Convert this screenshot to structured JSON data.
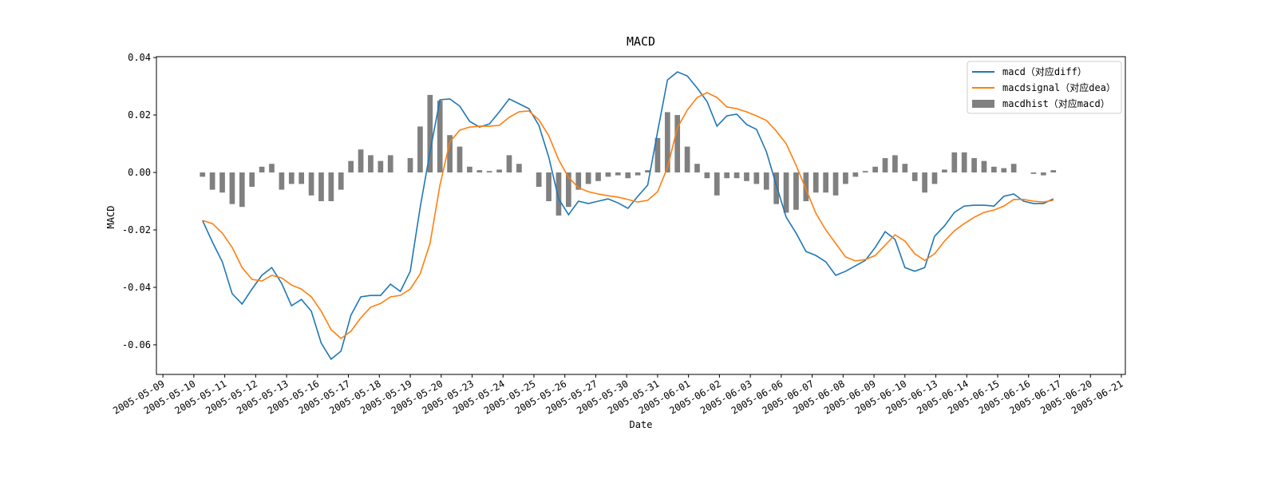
{
  "chart_data": {
    "type": "line",
    "title": "MACD",
    "xlabel": "Date",
    "ylabel": "MACD",
    "x": [
      1.28,
      1.6,
      1.92,
      2.24,
      2.56,
      2.88,
      3.2,
      3.52,
      3.84,
      4.16,
      4.48,
      4.8,
      5.12,
      5.44,
      5.76,
      6.08,
      6.4,
      6.72,
      7.04,
      7.36,
      7.68,
      8.0,
      8.32,
      8.64,
      8.96,
      9.28,
      9.6,
      9.92,
      10.24,
      10.56,
      10.88,
      11.2,
      11.52,
      11.84,
      12.16,
      12.48,
      12.8,
      13.12,
      13.44,
      13.76,
      14.08,
      14.4,
      14.72,
      15.04,
      15.36,
      15.68,
      16.0,
      16.32,
      16.64,
      16.96,
      17.28,
      17.6,
      17.92,
      18.24,
      18.56,
      18.88,
      19.2,
      19.52,
      19.84,
      20.16,
      20.48,
      20.8,
      21.12,
      21.44,
      21.76,
      22.08,
      22.4,
      22.72,
      23.04,
      23.36,
      23.68,
      24.0,
      24.32,
      24.64,
      24.96,
      25.28,
      25.6,
      25.92,
      26.24,
      26.56,
      26.88,
      27.2,
      27.52,
      27.84,
      28.16,
      28.48,
      28.8
    ],
    "series": [
      {
        "name": "macd（对应diff）",
        "type": "line",
        "color": "#1f77b4",
        "values": [
          -0.0167,
          -0.0242,
          -0.0311,
          -0.0422,
          -0.0458,
          -0.0406,
          -0.0358,
          -0.0331,
          -0.0386,
          -0.0464,
          -0.0442,
          -0.0483,
          -0.0594,
          -0.065,
          -0.0622,
          -0.0497,
          -0.0433,
          -0.0428,
          -0.0428,
          -0.0389,
          -0.0414,
          -0.0344,
          -0.0122,
          0.0072,
          0.0253,
          0.0256,
          0.0231,
          0.0178,
          0.0158,
          0.0169,
          0.0211,
          0.0256,
          0.0239,
          0.0222,
          0.0164,
          0.0053,
          -0.0092,
          -0.0147,
          -0.01,
          -0.0108,
          -0.01,
          -0.0092,
          -0.0106,
          -0.0125,
          -0.0083,
          -0.0044,
          0.0142,
          0.0322,
          0.035,
          0.0336,
          0.0294,
          0.0247,
          0.0161,
          0.0197,
          0.0203,
          0.0167,
          0.015,
          0.0072,
          -0.0044,
          -0.0156,
          -0.0211,
          -0.0275,
          -0.0289,
          -0.0311,
          -0.0358,
          -0.0344,
          -0.0325,
          -0.0306,
          -0.0261,
          -0.0206,
          -0.0233,
          -0.0331,
          -0.0344,
          -0.0331,
          -0.0222,
          -0.0186,
          -0.0139,
          -0.0117,
          -0.0114,
          -0.0114,
          -0.0117,
          -0.0083,
          -0.0075,
          -0.01,
          -0.0108,
          -0.0108,
          -0.0092
        ]
      },
      {
        "name": "macdsignal（对应dea）",
        "type": "line",
        "color": "#ff7f0e",
        "values": [
          -0.0167,
          -0.0178,
          -0.0211,
          -0.0261,
          -0.0331,
          -0.0372,
          -0.0378,
          -0.0358,
          -0.0367,
          -0.0392,
          -0.0406,
          -0.0433,
          -0.0483,
          -0.0547,
          -0.0578,
          -0.0553,
          -0.0506,
          -0.0469,
          -0.0456,
          -0.0433,
          -0.0428,
          -0.0406,
          -0.0353,
          -0.0247,
          -0.0044,
          0.0106,
          0.0147,
          0.0158,
          0.0161,
          0.0161,
          0.0164,
          0.0192,
          0.0211,
          0.0214,
          0.0183,
          0.0128,
          0.0044,
          -0.0017,
          -0.0053,
          -0.0067,
          -0.0075,
          -0.0081,
          -0.0086,
          -0.0094,
          -0.0103,
          -0.0097,
          -0.0067,
          0.0017,
          0.0156,
          0.0217,
          0.0261,
          0.0278,
          0.0261,
          0.0228,
          0.0222,
          0.0211,
          0.0197,
          0.0181,
          0.0144,
          0.01,
          0.0025,
          -0.0058,
          -0.0142,
          -0.02,
          -0.0247,
          -0.0294,
          -0.0308,
          -0.0303,
          -0.0289,
          -0.0253,
          -0.0217,
          -0.0239,
          -0.0283,
          -0.0306,
          -0.0283,
          -0.0239,
          -0.0203,
          -0.0178,
          -0.0156,
          -0.0139,
          -0.0131,
          -0.0117,
          -0.0094,
          -0.0094,
          -0.01,
          -0.0103,
          -0.0097
        ]
      },
      {
        "name": "macdhist（对应macd）",
        "type": "bar",
        "color": "#808080",
        "values": [
          -0.0015,
          -0.006,
          -0.007,
          -0.011,
          -0.012,
          -0.005,
          0.002,
          0.003,
          -0.006,
          -0.004,
          -0.004,
          -0.008,
          -0.01,
          -0.01,
          -0.006,
          0.004,
          0.008,
          0.006,
          0.004,
          0.006,
          0.0,
          0.005,
          0.016,
          0.027,
          0.025,
          0.013,
          0.009,
          0.002,
          0.0008,
          0.0005,
          0.001,
          0.006,
          0.003,
          0.0,
          -0.005,
          -0.01,
          -0.015,
          -0.012,
          -0.006,
          -0.004,
          -0.003,
          -0.0015,
          -0.001,
          -0.002,
          -0.001,
          0.0008,
          0.012,
          0.021,
          0.02,
          0.009,
          0.003,
          -0.002,
          -0.008,
          -0.002,
          -0.002,
          -0.003,
          -0.004,
          -0.006,
          -0.011,
          -0.014,
          -0.013,
          -0.01,
          -0.007,
          -0.007,
          -0.008,
          -0.004,
          -0.0015,
          0.0005,
          0.002,
          0.005,
          0.006,
          0.003,
          -0.003,
          -0.007,
          -0.004,
          0.001,
          0.007,
          0.007,
          0.005,
          0.004,
          0.002,
          0.0015,
          0.003,
          0.0,
          -0.0005,
          -0.001,
          0.0008
        ]
      }
    ],
    "xlim": [
      -0.21,
      31.13
    ],
    "xticks": [
      {
        "value": 0,
        "label": "2005-05-09"
      },
      {
        "value": 1,
        "label": "2005-05-10"
      },
      {
        "value": 2,
        "label": "2005-05-11"
      },
      {
        "value": 3,
        "label": "2005-05-12"
      },
      {
        "value": 4,
        "label": "2005-05-13"
      },
      {
        "value": 5,
        "label": "2005-05-16"
      },
      {
        "value": 6,
        "label": "2005-05-17"
      },
      {
        "value": 7,
        "label": "2005-05-18"
      },
      {
        "value": 8,
        "label": "2005-05-19"
      },
      {
        "value": 9,
        "label": "2005-05-20"
      },
      {
        "value": 10,
        "label": "2005-05-23"
      },
      {
        "value": 11,
        "label": "2005-05-24"
      },
      {
        "value": 12,
        "label": "2005-05-25"
      },
      {
        "value": 13,
        "label": "2005-05-26"
      },
      {
        "value": 14,
        "label": "2005-05-27"
      },
      {
        "value": 15,
        "label": "2005-05-30"
      },
      {
        "value": 16,
        "label": "2005-05-31"
      },
      {
        "value": 17,
        "label": "2005-06-01"
      },
      {
        "value": 18,
        "label": "2005-06-02"
      },
      {
        "value": 19,
        "label": "2005-06-03"
      },
      {
        "value": 20,
        "label": "2005-06-06"
      },
      {
        "value": 21,
        "label": "2005-06-07"
      },
      {
        "value": 22,
        "label": "2005-06-08"
      },
      {
        "value": 23,
        "label": "2005-06-09"
      },
      {
        "value": 24,
        "label": "2005-06-10"
      },
      {
        "value": 25,
        "label": "2005-06-13"
      },
      {
        "value": 26,
        "label": "2005-06-14"
      },
      {
        "value": 27,
        "label": "2005-06-15"
      },
      {
        "value": 28,
        "label": "2005-06-16"
      },
      {
        "value": 29,
        "label": "2005-06-17"
      },
      {
        "value": 30,
        "label": "2005-06-20"
      },
      {
        "value": 31,
        "label": "2005-06-21"
      }
    ],
    "ylim": [
      -0.0703,
      0.0403
    ],
    "yticks": [
      -0.06,
      -0.04,
      -0.02,
      {
        "value": 0,
        "label": "0.00"
      },
      0.02,
      0.04
    ],
    "grid": false,
    "legend": "upper right"
  }
}
